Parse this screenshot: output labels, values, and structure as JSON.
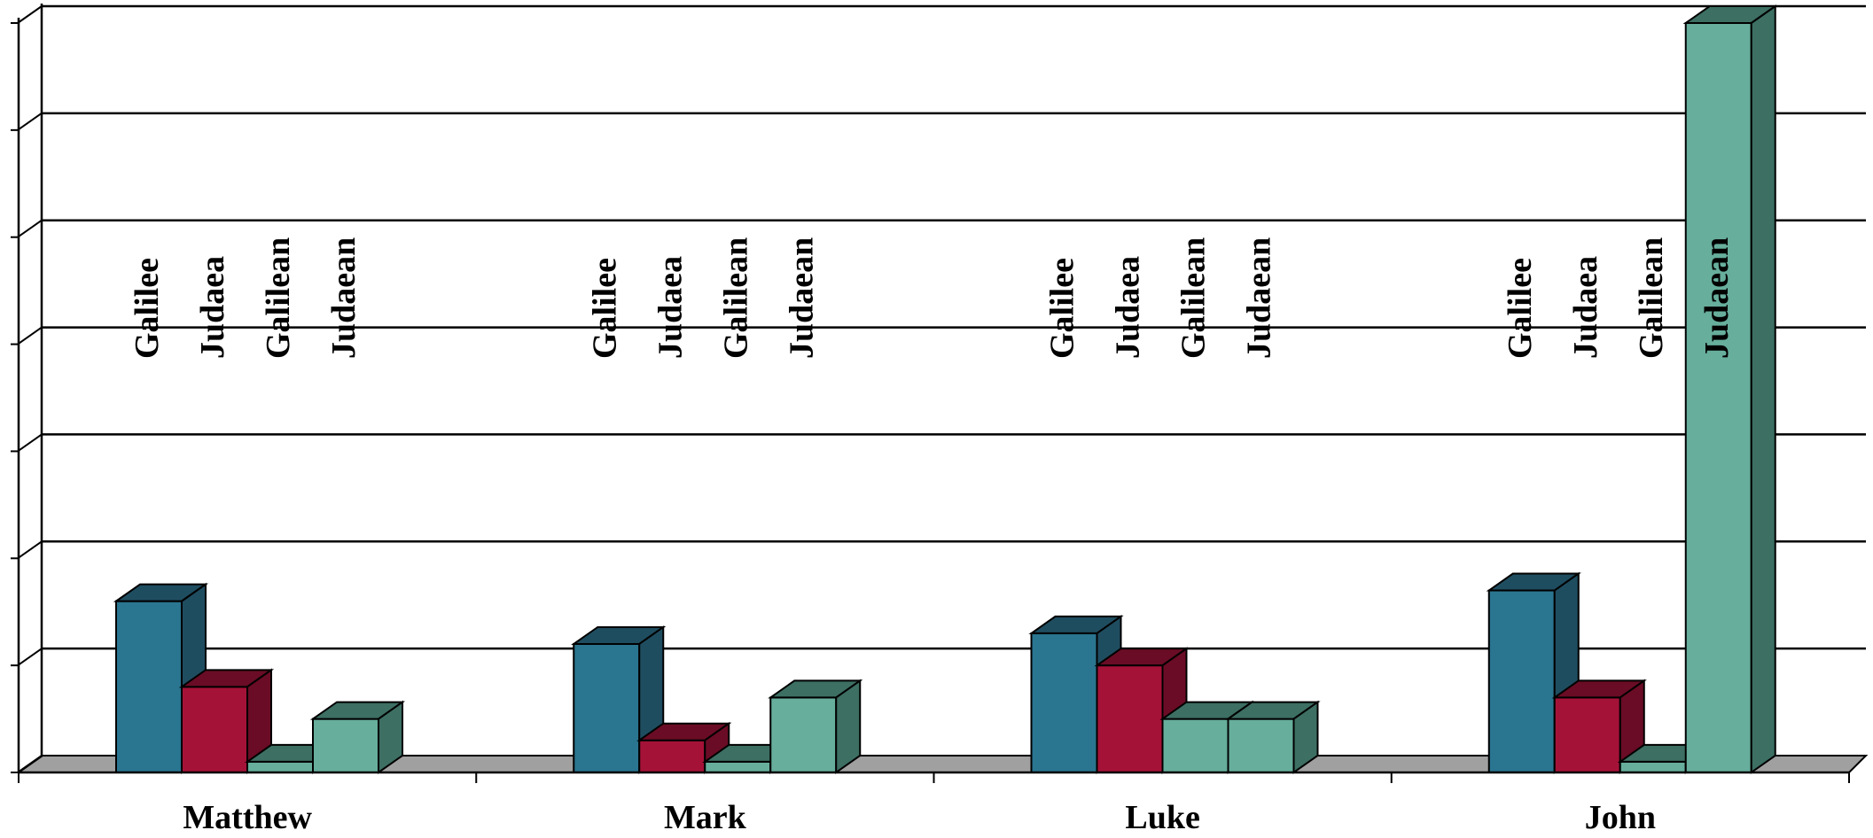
{
  "chart_data": {
    "type": "bar",
    "style": "3d-clustered",
    "categories": [
      "Matthew",
      "Mark",
      "Luke",
      "John"
    ],
    "series": [
      {
        "color": "#2a7590",
        "side_color": "#1f4d60",
        "values": [
          8,
          6,
          6.5,
          8.5
        ]
      },
      {
        "color": "#a51238",
        "side_color": "#6a0c25",
        "values": [
          4,
          1.5,
          5,
          3.5
        ]
      },
      {
        "color": "#67ae9c",
        "side_color": "#3d6f63",
        "values": [
          0.5,
          0.5,
          2.5,
          0.5
        ]
      },
      {
        "color": "#67ae9c",
        "side_color": "#3d6f63",
        "values": [
          2.5,
          3.5,
          2.5,
          35
        ]
      }
    ],
    "bar_labels": [
      [
        "Galilee",
        "Judaea",
        "Galilean",
        "Judaean"
      ],
      [
        "Galilee",
        "Judaea",
        "Galilean",
        "Judaean"
      ],
      [
        "Galilee",
        "Judaea",
        "Galilean",
        "Judaean"
      ],
      [
        "Galilee",
        "Judaea",
        "Galilean",
        "Judaean"
      ]
    ],
    "ylim": [
      0,
      35
    ],
    "y_gridline_step": 5,
    "grid": true,
    "xlabel": "",
    "ylabel": "",
    "title": "",
    "legend": "none",
    "floor_color": "#a0a0a0"
  }
}
